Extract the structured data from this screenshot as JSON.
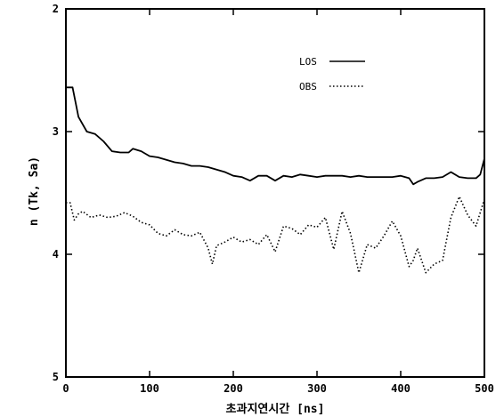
{
  "chart_data": {
    "type": "line",
    "title": "",
    "xlabel": "초과지연시간 [ns]",
    "ylabel": "n (Tk, Sa)",
    "xlim": [
      0,
      500
    ],
    "ylim": [
      2,
      5
    ],
    "y_inverted": true,
    "grid": false,
    "legend_position": "top-right",
    "xticks": [
      "0",
      "100",
      "200",
      "300",
      "400",
      "500"
    ],
    "yticks": [
      "2",
      "3",
      "4",
      "5"
    ],
    "series": [
      {
        "name": "LOS",
        "style": "solid",
        "color": "#000000",
        "x": [
          0,
          8,
          15,
          25,
          35,
          45,
          55,
          65,
          75,
          80,
          90,
          100,
          110,
          120,
          130,
          140,
          150,
          160,
          170,
          180,
          190,
          200,
          210,
          220,
          230,
          240,
          250,
          260,
          270,
          280,
          290,
          300,
          310,
          320,
          330,
          340,
          350,
          360,
          370,
          380,
          390,
          400,
          410,
          415,
          420,
          430,
          440,
          450,
          460,
          470,
          480,
          490,
          495,
          500
        ],
        "y": [
          2.64,
          2.64,
          2.88,
          3.0,
          3.02,
          3.08,
          3.16,
          3.17,
          3.17,
          3.14,
          3.16,
          3.2,
          3.21,
          3.23,
          3.25,
          3.26,
          3.28,
          3.28,
          3.29,
          3.31,
          3.33,
          3.36,
          3.37,
          3.4,
          3.36,
          3.36,
          3.4,
          3.36,
          3.37,
          3.35,
          3.36,
          3.37,
          3.36,
          3.36,
          3.36,
          3.37,
          3.36,
          3.37,
          3.37,
          3.37,
          3.37,
          3.36,
          3.38,
          3.43,
          3.41,
          3.38,
          3.38,
          3.37,
          3.33,
          3.37,
          3.38,
          3.38,
          3.35,
          3.22
        ]
      },
      {
        "name": "OBS",
        "style": "dotted",
        "color": "#000000",
        "x": [
          0,
          5,
          10,
          15,
          20,
          30,
          40,
          50,
          60,
          70,
          80,
          90,
          100,
          110,
          120,
          130,
          140,
          150,
          160,
          170,
          175,
          180,
          190,
          200,
          210,
          220,
          230,
          240,
          250,
          260,
          270,
          280,
          290,
          300,
          310,
          320,
          330,
          340,
          350,
          360,
          370,
          380,
          390,
          400,
          410,
          415,
          420,
          430,
          440,
          450,
          460,
          470,
          480,
          490,
          500
        ],
        "y": [
          3.58,
          3.58,
          3.72,
          3.67,
          3.65,
          3.7,
          3.68,
          3.7,
          3.69,
          3.66,
          3.69,
          3.74,
          3.76,
          3.83,
          3.85,
          3.8,
          3.84,
          3.85,
          3.82,
          3.95,
          4.08,
          3.93,
          3.9,
          3.86,
          3.9,
          3.88,
          3.92,
          3.84,
          3.98,
          3.77,
          3.79,
          3.84,
          3.76,
          3.78,
          3.7,
          3.96,
          3.65,
          3.83,
          4.15,
          3.92,
          3.95,
          3.85,
          3.73,
          3.85,
          4.1,
          4.05,
          3.95,
          4.15,
          4.08,
          4.05,
          3.7,
          3.53,
          3.68,
          3.77,
          3.55
        ]
      }
    ]
  }
}
